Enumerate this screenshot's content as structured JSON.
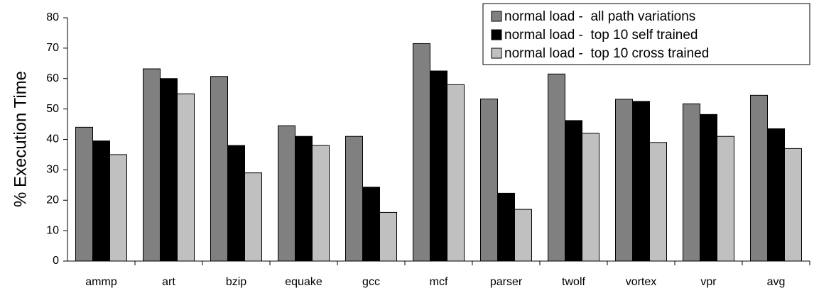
{
  "chart_data": {
    "type": "bar",
    "y_label": "% Execution Time",
    "categories": [
      "ammp",
      "art",
      "bzip",
      "equake",
      "gcc",
      "mcf",
      "parser",
      "twolf",
      "vortex",
      "vpr",
      "avg"
    ],
    "series": [
      {
        "name": "normal load -  all path variations",
        "color": "#808080",
        "values": [
          44,
          63.2,
          60.7,
          44.5,
          41,
          71.5,
          53.3,
          61.5,
          53.2,
          51.7,
          54.5
        ]
      },
      {
        "name": "normal load -  top 10 self trained",
        "color": "#000000",
        "values": [
          39.5,
          60,
          38,
          41,
          24.3,
          62.5,
          22.3,
          46.2,
          52.5,
          48.2,
          43.5
        ]
      },
      {
        "name": "normal load -  top 10 cross trained",
        "color": "#c0c0c0",
        "values": [
          35,
          55,
          29,
          38,
          16,
          58,
          17,
          42,
          39,
          41,
          37
        ]
      }
    ],
    "ylim": [
      0,
      80
    ],
    "yticks": [
      0,
      10,
      20,
      30,
      40,
      50,
      60,
      70,
      80
    ],
    "grid": false,
    "legend": "top-right"
  }
}
